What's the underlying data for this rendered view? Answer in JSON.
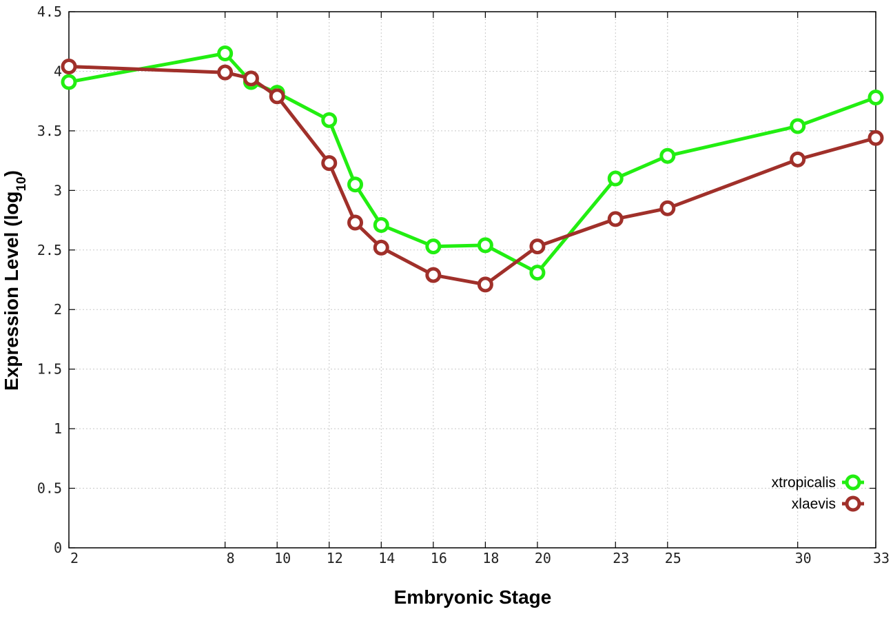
{
  "chart_data": {
    "type": "line",
    "xlabel": "Embryonic Stage",
    "ylabel_main": "Expression Level (log",
    "ylabel_sub": "10",
    "ylabel_close": ")",
    "x": [
      2,
      8,
      9,
      10,
      12,
      13,
      14,
      16,
      18,
      20,
      23,
      25,
      30,
      33
    ],
    "x_ticks": [
      2,
      8,
      10,
      12,
      14,
      16,
      18,
      20,
      23,
      25,
      30,
      33
    ],
    "x_tick_labels": [
      "2",
      "8",
      "10",
      "12",
      "14",
      "16",
      "18",
      "20",
      "23",
      "25",
      "30",
      "33"
    ],
    "xlim": [
      2,
      33
    ],
    "ylim": [
      0,
      4.5
    ],
    "y_ticks": [
      0,
      0.5,
      1,
      1.5,
      2,
      2.5,
      3,
      3.5,
      4,
      4.5
    ],
    "y_tick_labels": [
      "0",
      "0.5",
      "1",
      "1.5",
      "2",
      "2.5",
      "3",
      "3.5",
      "4",
      "4.5"
    ],
    "grid": true,
    "legend_position": "bottom-right",
    "series": [
      {
        "name": "xtropicalis",
        "color": "#22ee11",
        "values": [
          3.91,
          4.15,
          3.91,
          3.82,
          3.59,
          3.05,
          2.71,
          2.53,
          2.54,
          2.31,
          3.1,
          3.29,
          3.54,
          3.78
        ]
      },
      {
        "name": "xlaevis",
        "color": "#a0302a",
        "values": [
          4.04,
          3.99,
          3.94,
          3.79,
          3.23,
          2.73,
          2.52,
          2.29,
          2.21,
          2.53,
          2.76,
          2.85,
          3.26,
          3.44
        ]
      }
    ]
  }
}
